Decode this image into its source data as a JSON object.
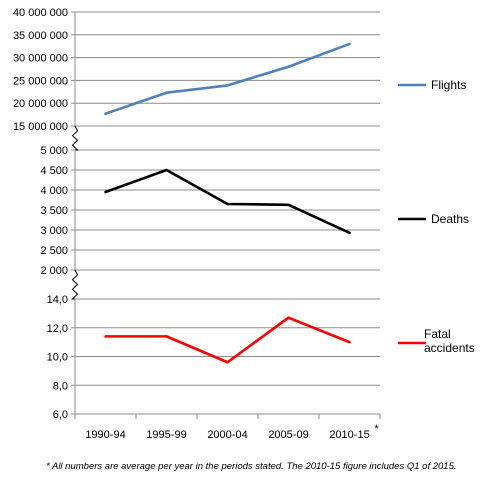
{
  "chart_data": {
    "type": "line",
    "categories": [
      "1990-94",
      "1995-99",
      "2000-04",
      "2005-09",
      "2010-15"
    ],
    "category_suffix": "*",
    "panels": [
      {
        "ticks": [
          "15 000 000",
          "20 000 000",
          "25 000 000",
          "30 000 000",
          "35 000 000",
          "40 000 000"
        ],
        "ylim": [
          15000000,
          40000000
        ],
        "series": [
          {
            "name": "Flights",
            "color": "#4f81bd",
            "values": [
              17700000,
              22300000,
              23900000,
              28000000,
              33000000
            ]
          }
        ]
      },
      {
        "ticks": [
          "2 000",
          "2 500",
          "3 000",
          "3 500",
          "4 000",
          "4 500",
          "5 000"
        ],
        "ylim": [
          2000,
          5000
        ],
        "series": [
          {
            "name": "Deaths",
            "color": "#000000",
            "values": [
              3950,
              4500,
              3650,
              3630,
              2930
            ]
          }
        ]
      },
      {
        "ticks": [
          "6,0",
          "8,0",
          "10,0",
          "12,0",
          "14,0"
        ],
        "ylim": [
          6,
          14
        ],
        "series": [
          {
            "name": "Fatal accidents",
            "legend_lines": [
              "Fatal",
              "accidents"
            ],
            "color": "#ff0000",
            "values": [
              11.4,
              11.4,
              9.6,
              12.7,
              11.0
            ]
          }
        ]
      }
    ],
    "grid": true,
    "legend_position": "right",
    "axis_breaks": true
  },
  "footnote": "* All numbers are average per year in the periods stated. The 2010-15 figure includes Q1 of 2015."
}
